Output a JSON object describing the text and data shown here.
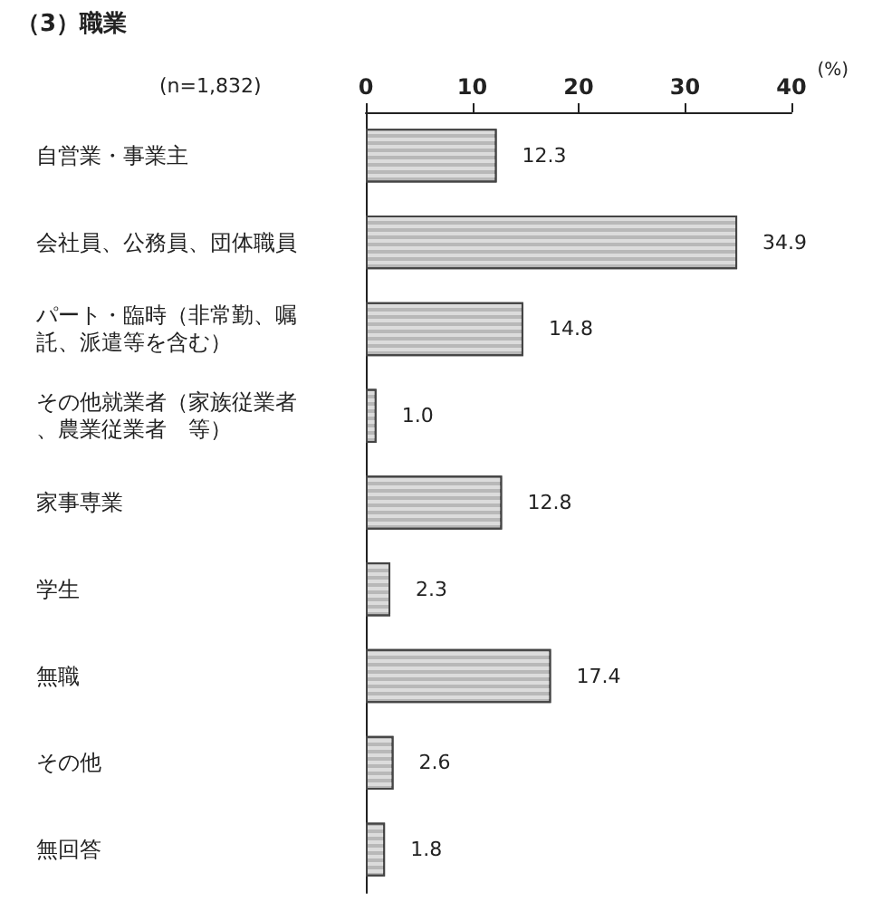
{
  "chart_data": {
    "type": "bar",
    "orientation": "horizontal",
    "title": "（3）職業",
    "categories": [
      "自営業・事業主",
      "会社員、公務員、団体職員",
      "パート・臨時（非常勤、嘱託、派遣等を含む）",
      "その他就業者（家族従業者、農業従業者　等）",
      "家事専業",
      "学生",
      "無職",
      "その他",
      "無回答"
    ],
    "values": [
      12.3,
      34.9,
      14.8,
      1.0,
      12.8,
      2.3,
      17.4,
      2.6,
      1.8
    ],
    "color": "#b8b8b8",
    "xlim": [
      0,
      40
    ],
    "xticks": [
      0,
      10,
      20,
      30,
      40
    ],
    "xlabel": "(%)",
    "annotations": [
      "(n=1,832)"
    ],
    "value_labels": [
      "12.3",
      "34.9",
      "14.8",
      "1.0",
      "12.8",
      "2.3",
      "17.4",
      "2.6",
      "1.8"
    ],
    "grid": false
  }
}
